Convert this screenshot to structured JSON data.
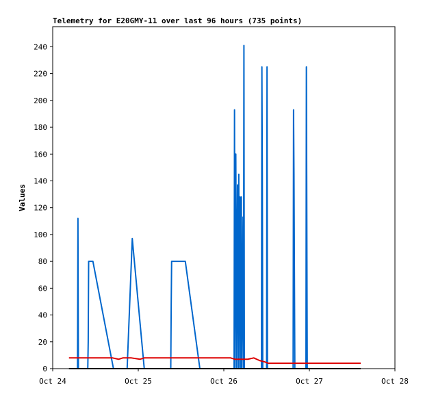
{
  "chart_data": {
    "type": "line",
    "title": "Telemetry for E20GMY-11 over last 96 hours (735 points)",
    "xlabel": "",
    "ylabel": "Values",
    "xlim": [
      "Oct 24",
      "Oct 28"
    ],
    "ylim": [
      0,
      255
    ],
    "x_ticks": [
      "Oct 24",
      "Oct 25",
      "Oct 26",
      "Oct 27",
      "Oct 28"
    ],
    "y_ticks": [
      0,
      20,
      40,
      60,
      80,
      100,
      120,
      140,
      160,
      180,
      200,
      220,
      240
    ],
    "grid": false,
    "legend": "none",
    "x_unit": "days since Oct 24 00:00",
    "series": [
      {
        "color": "#0066cc",
        "points": [
          [
            0.29,
            0
          ],
          [
            0.295,
            112
          ],
          [
            0.3,
            0
          ],
          [
            0.41,
            0
          ],
          [
            0.415,
            20
          ],
          [
            0.42,
            80
          ],
          [
            0.47,
            80
          ],
          [
            0.71,
            0
          ],
          [
            0.87,
            0
          ],
          [
            0.93,
            97
          ],
          [
            1.07,
            0
          ],
          [
            1.38,
            0
          ],
          [
            1.385,
            48
          ],
          [
            1.39,
            80
          ],
          [
            1.55,
            80
          ],
          [
            1.72,
            0
          ],
          [
            2.12,
            0
          ],
          [
            2.125,
            193
          ],
          [
            2.13,
            0
          ],
          [
            2.14,
            160
          ],
          [
            2.15,
            0
          ],
          [
            2.16,
            137
          ],
          [
            2.17,
            0
          ],
          [
            2.175,
            145
          ],
          [
            2.18,
            0
          ],
          [
            2.19,
            128
          ],
          [
            2.2,
            0
          ],
          [
            2.205,
            128
          ],
          [
            2.21,
            0
          ],
          [
            2.225,
            113
          ],
          [
            2.23,
            0
          ],
          [
            2.235,
            241
          ],
          [
            2.24,
            0
          ],
          [
            2.44,
            0
          ],
          [
            2.445,
            225
          ],
          [
            2.45,
            145
          ],
          [
            2.455,
            0
          ],
          [
            2.5,
            0
          ],
          [
            2.505,
            225
          ],
          [
            2.51,
            0
          ],
          [
            2.81,
            0
          ],
          [
            2.815,
            193
          ],
          [
            2.82,
            145
          ],
          [
            2.825,
            72
          ],
          [
            2.83,
            0
          ],
          [
            2.96,
            0
          ],
          [
            2.965,
            225
          ],
          [
            2.97,
            112
          ],
          [
            2.975,
            0
          ]
        ]
      },
      {
        "color": "#dd0000",
        "points": [
          [
            0.19,
            8
          ],
          [
            0.7,
            8
          ],
          [
            0.77,
            7
          ],
          [
            0.82,
            8
          ],
          [
            0.92,
            8
          ],
          [
            1.02,
            7
          ],
          [
            1.07,
            8
          ],
          [
            2.08,
            8
          ],
          [
            2.13,
            7
          ],
          [
            2.28,
            7
          ],
          [
            2.35,
            8
          ],
          [
            2.42,
            6
          ],
          [
            2.48,
            5
          ],
          [
            2.52,
            4
          ],
          [
            3.6,
            4
          ]
        ]
      },
      {
        "color": "#000000",
        "points": [
          [
            0.19,
            0
          ],
          [
            3.6,
            0
          ]
        ]
      }
    ]
  }
}
